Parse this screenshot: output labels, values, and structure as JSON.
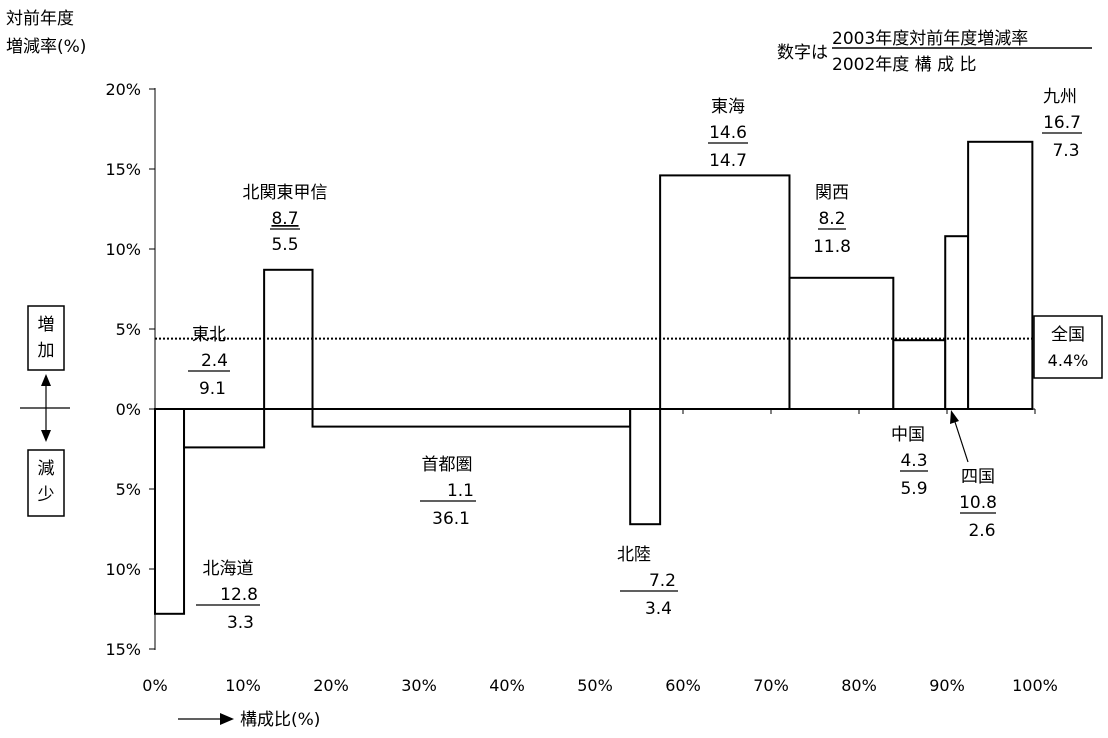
{
  "chart_data": {
    "type": "bar",
    "title": "",
    "ylabel_lines": [
      "対前年度",
      "増減率(%)"
    ],
    "xlabel": "構成比(%)",
    "legend_note": {
      "prefix": "数字は",
      "numerator": "2003年度対前年度増減率",
      "denominator": "2002年度 構 成 比"
    },
    "side_labels": {
      "increase": [
        "増",
        "加"
      ],
      "decrease": [
        "減",
        "少"
      ]
    },
    "ylim": [
      -15,
      20
    ],
    "xlim": [
      0,
      100
    ],
    "yticks": [
      20,
      15,
      10,
      5,
      0,
      -5,
      -10,
      -15
    ],
    "ytick_labels": [
      "20%",
      "15%",
      "10%",
      "5%",
      "0%",
      "5%",
      "10%",
      "15%"
    ],
    "xticks": [
      0,
      10,
      20,
      30,
      40,
      50,
      60,
      70,
      80,
      90,
      100
    ],
    "xtick_labels": [
      "0%",
      "10%",
      "20%",
      "30%",
      "40%",
      "50%",
      "60%",
      "70%",
      "80%",
      "90%",
      "100%"
    ],
    "bars": [
      {
        "name": "北海道",
        "rate_label": "12.8",
        "share_label": "3.3",
        "rate": -12.8,
        "share": 3.3
      },
      {
        "name": "東北",
        "rate_label": "2.4",
        "share_label": "9.1",
        "rate": -2.4,
        "share": 9.1
      },
      {
        "name": "北関東甲信",
        "rate_label": "8.7",
        "share_label": "5.5",
        "rate": 8.7,
        "share": 5.5
      },
      {
        "name": "首都圏",
        "rate_label": "1.1",
        "share_label": "36.1",
        "rate": -1.1,
        "share": 36.1
      },
      {
        "name": "北陸",
        "rate_label": "7.2",
        "share_label": "3.4",
        "rate": -7.2,
        "share": 3.4
      },
      {
        "name": "東海",
        "rate_label": "14.6",
        "share_label": "14.7",
        "rate": 14.6,
        "share": 14.7
      },
      {
        "name": "関西",
        "rate_label": "8.2",
        "share_label": "11.8",
        "rate": 8.2,
        "share": 11.8
      },
      {
        "name": "中国",
        "rate_label": "4.3",
        "share_label": "5.9",
        "rate": 4.3,
        "share": 5.9
      },
      {
        "name": "四国",
        "rate_label": "10.8",
        "share_label": "2.6",
        "rate": 10.8,
        "share": 2.6
      },
      {
        "name": "九州",
        "rate_label": "16.7",
        "share_label": "7.3",
        "rate": 16.7,
        "share": 7.3
      }
    ],
    "national": {
      "name": "全国",
      "value_label": "4.4%",
      "rate": 4.4
    },
    "grid": false,
    "reference_line": "dotted"
  }
}
